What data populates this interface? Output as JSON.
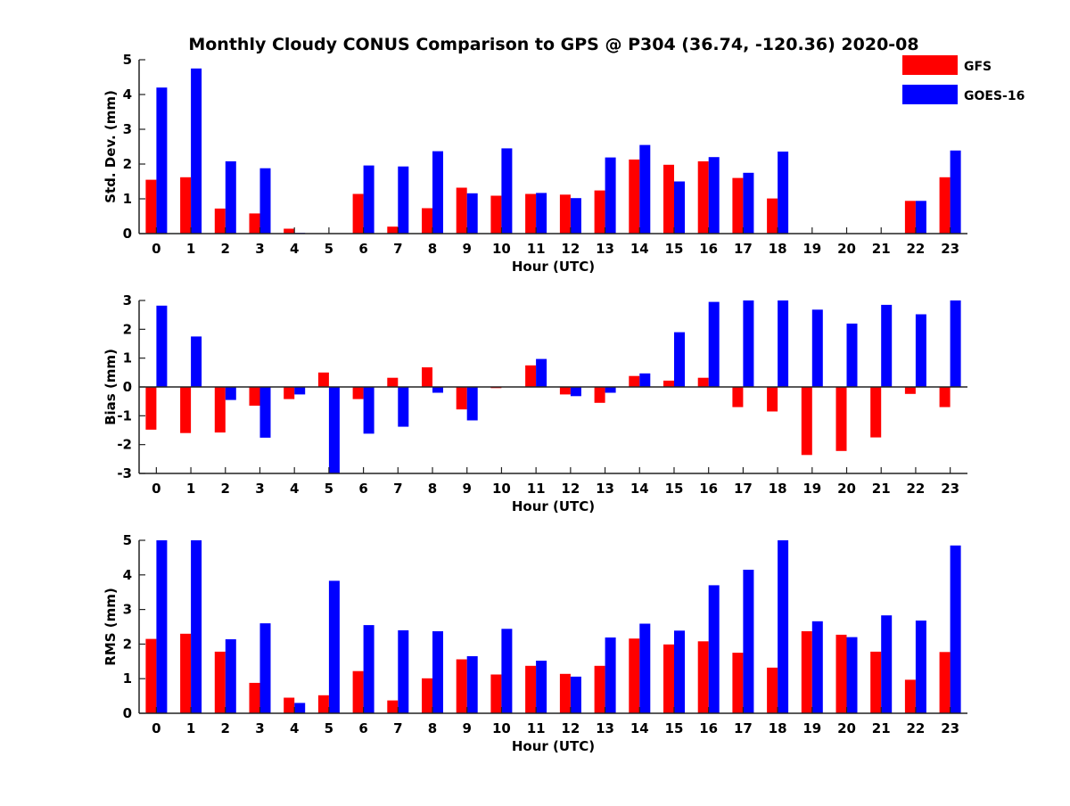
{
  "title": "Monthly Cloudy CONUS Comparison to GPS @ P304 (36.74, -120.36) 2020-08",
  "legend": [
    {
      "name": "GFS",
      "color": "#ff0000"
    },
    {
      "name": "GOES-16",
      "color": "#0000ff"
    }
  ],
  "chart_data": [
    {
      "type": "bar",
      "xlabel": "Hour (UTC)",
      "ylabel": "Std. Dev. (mm)",
      "ylim": [
        0,
        5
      ],
      "yticks": [
        "0",
        "1",
        "2",
        "3",
        "4",
        "5"
      ],
      "categories": [
        "0",
        "1",
        "2",
        "3",
        "4",
        "5",
        "6",
        "7",
        "8",
        "9",
        "10",
        "11",
        "12",
        "13",
        "14",
        "15",
        "16",
        "17",
        "18",
        "19",
        "20",
        "21",
        "22",
        "23"
      ],
      "series": [
        {
          "name": "GFS",
          "color": "#ff0000",
          "values": [
            1.55,
            1.62,
            0.72,
            0.58,
            0.14,
            0,
            1.14,
            0.2,
            0.73,
            1.32,
            1.09,
            1.14,
            1.12,
            1.24,
            2.13,
            1.98,
            2.08,
            1.6,
            1.01,
            0,
            0,
            0,
            0.94,
            1.62
          ]
        },
        {
          "name": "GOES-16",
          "color": "#0000ff",
          "values": [
            4.2,
            4.75,
            2.08,
            1.88,
            0.02,
            0,
            1.96,
            1.93,
            2.37,
            1.16,
            2.45,
            1.17,
            1.02,
            2.19,
            2.55,
            1.5,
            2.2,
            1.75,
            2.36,
            0,
            0,
            0,
            0.94,
            2.39
          ]
        }
      ]
    },
    {
      "type": "bar",
      "xlabel": "Hour (UTC)",
      "ylabel": "Bias (mm)",
      "ylim": [
        -3,
        3
      ],
      "yticks": [
        "-3",
        "-2",
        "-1",
        "0",
        "1",
        "2",
        "3"
      ],
      "categories": [
        "0",
        "1",
        "2",
        "3",
        "4",
        "5",
        "6",
        "7",
        "8",
        "9",
        "10",
        "11",
        "12",
        "13",
        "14",
        "15",
        "16",
        "17",
        "18",
        "19",
        "20",
        "21",
        "22",
        "23"
      ],
      "series": [
        {
          "name": "GFS",
          "color": "#ff0000",
          "values": [
            -1.48,
            -1.6,
            -1.58,
            -0.65,
            -0.42,
            0.5,
            -0.42,
            0.32,
            0.68,
            -0.78,
            -0.04,
            0.75,
            -0.26,
            -0.55,
            0.38,
            0.22,
            0.32,
            -0.7,
            -0.85,
            -2.36,
            -2.22,
            -1.75,
            -0.24,
            -0.7
          ]
        },
        {
          "name": "GOES-16",
          "color": "#0000ff",
          "values": [
            2.82,
            1.75,
            -0.45,
            -1.76,
            -0.26,
            -3.0,
            -1.62,
            -1.38,
            -0.2,
            -1.16,
            0,
            0.97,
            -0.32,
            -0.2,
            0.47,
            1.9,
            2.95,
            3.0,
            3.0,
            2.68,
            2.2,
            2.85,
            2.52,
            3.0
          ]
        }
      ]
    },
    {
      "type": "bar",
      "xlabel": "Hour (UTC)",
      "ylabel": "RMS (mm)",
      "ylim": [
        0,
        5
      ],
      "yticks": [
        "0",
        "1",
        "2",
        "3",
        "4",
        "5"
      ],
      "categories": [
        "0",
        "1",
        "2",
        "3",
        "4",
        "5",
        "6",
        "7",
        "8",
        "9",
        "10",
        "11",
        "12",
        "13",
        "14",
        "15",
        "16",
        "17",
        "18",
        "19",
        "20",
        "21",
        "22",
        "23"
      ],
      "series": [
        {
          "name": "GFS",
          "color": "#ff0000",
          "values": [
            2.15,
            2.3,
            1.78,
            0.88,
            0.45,
            0.52,
            1.22,
            0.37,
            1.01,
            1.56,
            1.12,
            1.37,
            1.14,
            1.37,
            2.16,
            1.99,
            2.08,
            1.75,
            1.32,
            2.37,
            2.27,
            1.78,
            0.97,
            1.77
          ]
        },
        {
          "name": "GOES-16",
          "color": "#0000ff",
          "values": [
            5.0,
            5.0,
            2.14,
            2.6,
            0.3,
            3.83,
            2.55,
            2.4,
            2.37,
            1.65,
            2.44,
            1.52,
            1.06,
            2.19,
            2.59,
            2.39,
            3.7,
            4.15,
            5.0,
            2.66,
            2.2,
            2.83,
            2.68,
            4.85
          ]
        }
      ]
    }
  ]
}
